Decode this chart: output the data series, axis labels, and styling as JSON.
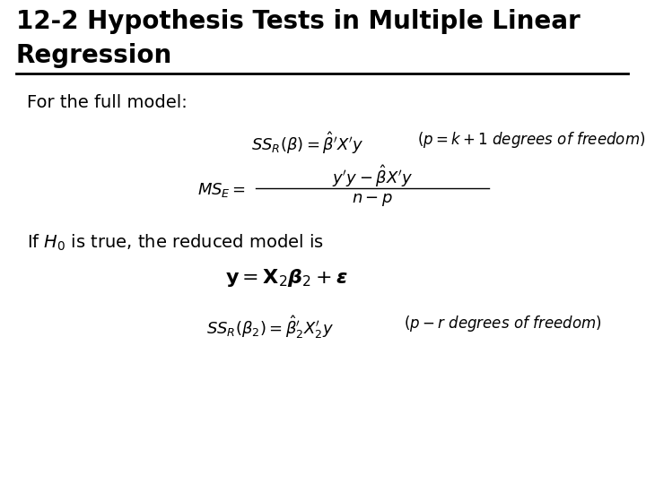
{
  "bg_color": "#ffffff",
  "text_color": "#000000",
  "title_line1": "12-2 Hypothesis Tests in Multiple Linear",
  "title_line2": "Regression",
  "title_fontsize": 20,
  "body_fontsize": 14,
  "eq_fontsize": 13,
  "eq3_fontsize": 14
}
